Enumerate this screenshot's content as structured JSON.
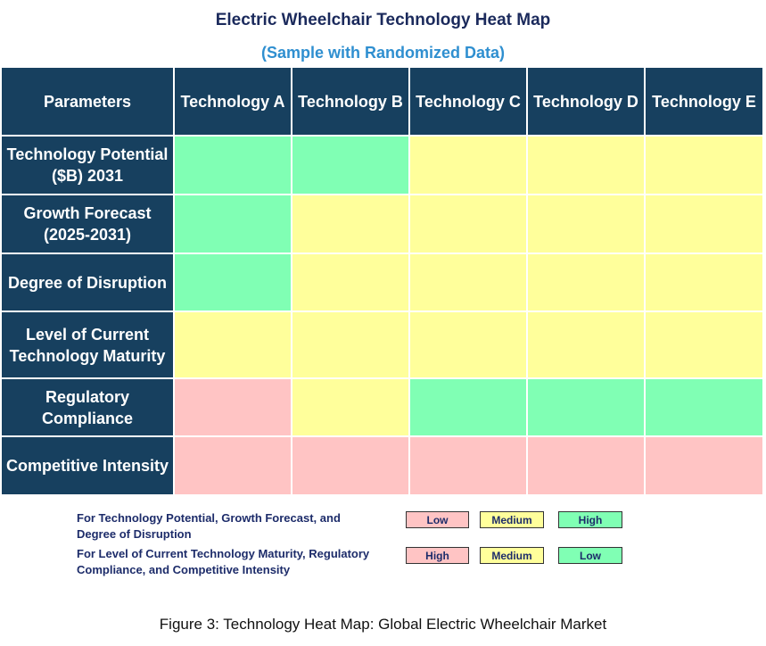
{
  "title": "Electric Wheelchair  Technology Heat Map",
  "subtitle": "(Sample with Randomized Data)",
  "table": {
    "header": [
      "Parameters",
      "Technology A",
      "Technology B",
      "Technology C",
      "Technology D",
      "Technology E"
    ],
    "rows": [
      {
        "label": "Technology Potential ($B) 2031",
        "cells": [
          "#80ffb4",
          "#80ffb4",
          "#ffff9b",
          "#ffff9b",
          "#ffff9b"
        ]
      },
      {
        "label": "Growth Forecast (2025-2031)",
        "cells": [
          "#80ffb4",
          "#ffff9b",
          "#ffff9b",
          "#ffff9b",
          "#ffff9b"
        ]
      },
      {
        "label": "Degree of Disruption",
        "cells": [
          "#80ffb4",
          "#ffff9b",
          "#ffff9b",
          "#ffff9b",
          "#ffff9b"
        ]
      },
      {
        "label": "Level of Current Technology Maturity",
        "cells": [
          "#ffff9b",
          "#ffff9b",
          "#ffff9b",
          "#ffff9b",
          "#ffff9b"
        ]
      },
      {
        "label": "Regulatory Compliance",
        "cells": [
          "#ffc4c4",
          "#ffff9b",
          "#80ffb4",
          "#80ffb4",
          "#80ffb4"
        ]
      },
      {
        "label": "Competitive Intensity",
        "cells": [
          "#ffc4c4",
          "#ffc4c4",
          "#ffc4c4",
          "#ffc4c4",
          "#ffc4c4"
        ]
      }
    ]
  },
  "legend": [
    {
      "text": "For Technology Potential, Growth Forecast, and Degree of Disruption",
      "items": [
        {
          "label": "Low",
          "color": "#ffc4c4"
        },
        {
          "label": "Medium",
          "color": "#ffff9b"
        },
        {
          "label": "High",
          "color": "#80ffb4"
        }
      ]
    },
    {
      "text": "For Level of Current Technology Maturity, Regulatory Compliance, and Competitive Intensity",
      "items": [
        {
          "label": "High",
          "color": "#ffc4c4"
        },
        {
          "label": "Medium",
          "color": "#ffff9b"
        },
        {
          "label": "Low",
          "color": "#80ffb4"
        }
      ]
    }
  ],
  "caption": "Figure 3: Technology Heat Map: Global Electric Wheelchair Market"
}
